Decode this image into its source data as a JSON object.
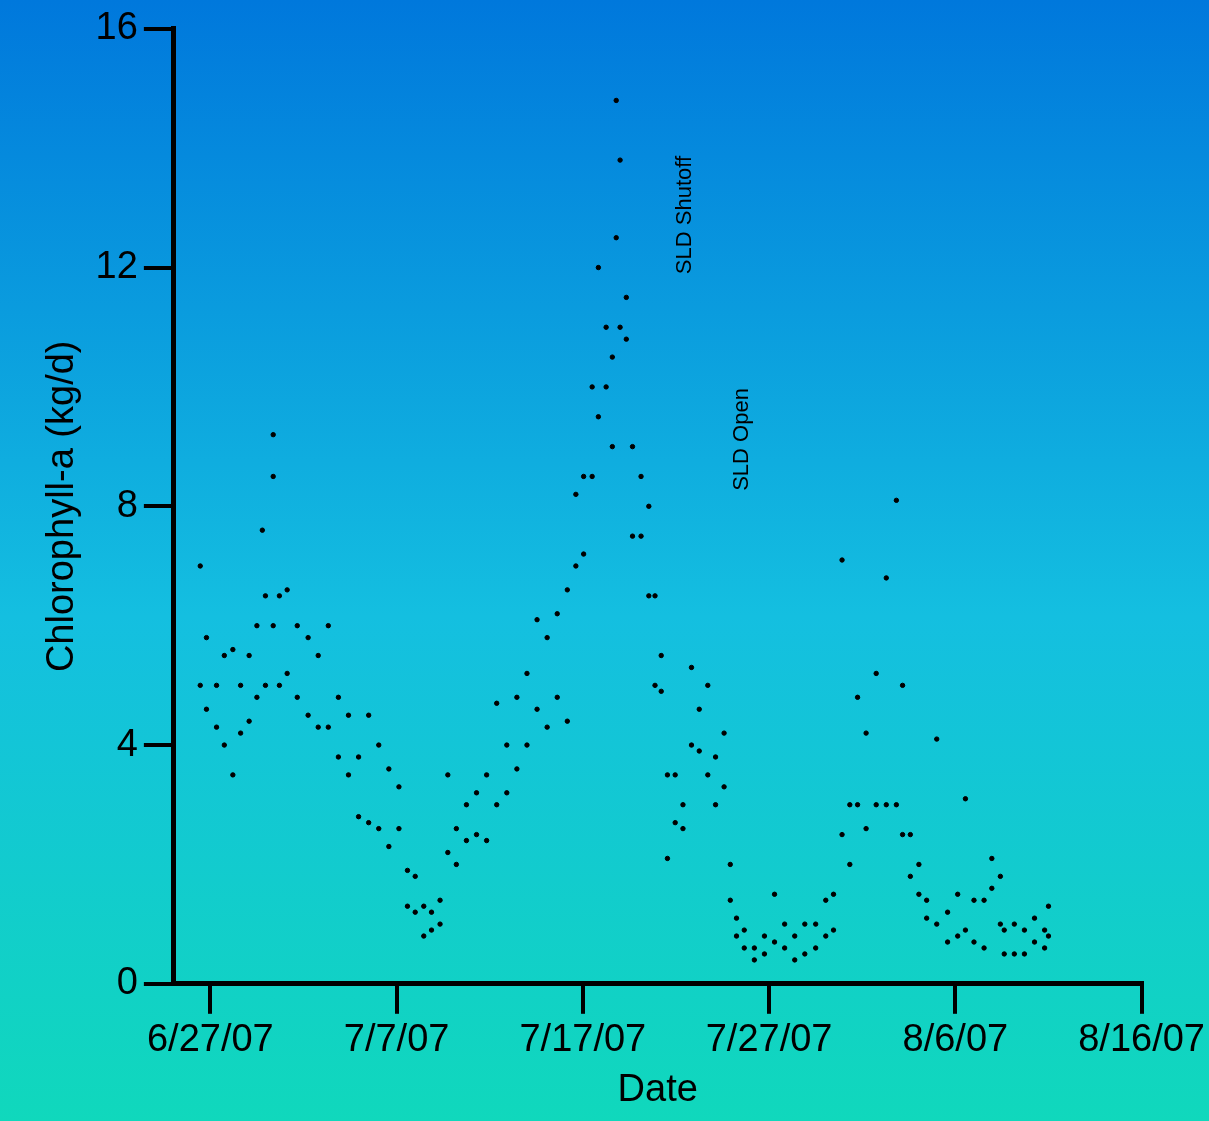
{
  "chart_data": {
    "type": "scatter",
    "xlabel": "Date",
    "ylabel": "Chlorophyll-a (kg/d)",
    "xlim": [
      "--06-25T01:00",
      "--08-16"
    ],
    "xticks": [
      {
        "value": "--06-27",
        "label": "6/27/07"
      },
      {
        "value": "--07-07",
        "label": "7/7/07"
      },
      {
        "value": "--07-17",
        "label": "7/17/07"
      },
      {
        "value": "--07-27",
        "label": "7/27/07"
      },
      {
        "value": "--08-06",
        "label": "8/6/07"
      },
      {
        "value": "--08-16",
        "label": "8/16/07"
      }
    ],
    "ylim": [
      0,
      16
    ],
    "yticks": [
      0,
      4,
      8,
      12,
      16
    ],
    "grid": false,
    "legend": false,
    "marker": "circle",
    "annotations": [
      "SLD Shutoff",
      "SLD Open"
    ],
    "series": [
      {
        "color": "#000000",
        "x": [
          "--06-26T11:00",
          "--06-26T11:00",
          "--06-26T19:00",
          "--06-26T19:00",
          "--06-27T08:00",
          "--06-27T08:00",
          "--06-27T18:00",
          "--06-27T18:00",
          "--06-28T05:00",
          "--06-28T05:00",
          "--06-28T15:00",
          "--06-28T15:00",
          "--06-29T02:00",
          "--06-29T02:00",
          "--06-29T12:00",
          "--06-29T12:00",
          "--06-29T19:00",
          "--06-29T23:00",
          "--06-29T23:00",
          "--06-30T09:00",
          "--06-30T09:00",
          "--06-30T09:00",
          "--06-30T17:00",
          "--06-30T17:00",
          "--07-01T03:00",
          "--07-01T03:00",
          "--07-01T16:00",
          "--07-01T16:00",
          "--07-02T06:00",
          "--07-02T06:00",
          "--07-02T19:00",
          "--07-02T19:00",
          "--07-03T08:00",
          "--07-03T08:00",
          "--07-03T21:00",
          "--07-03T21:00",
          "--07-04T10:00",
          "--07-04T10:00",
          "--07-04T23:00",
          "--07-04T23:00",
          "--07-05T12:00",
          "--07-05T12:00",
          "--07-06T01:00",
          "--07-06T01:00",
          "--07-06T14:00",
          "--07-06T14:00",
          "--07-07T03:00",
          "--07-07T03:00",
          "--07-07T14:00",
          "--07-07T14:00",
          "--07-08T00:00",
          "--07-08T00:00",
          "--07-08T11:00",
          "--07-08T11:00",
          "--07-08T21:00",
          "--07-08T21:00",
          "--07-09T08:00",
          "--07-09T08:00",
          "--07-09T18:00",
          "--07-09T18:00",
          "--07-10T05:00",
          "--07-10T05:00",
          "--07-10T18:00",
          "--07-10T18:00",
          "--07-11T07:00",
          "--07-11T07:00",
          "--07-11T20:00",
          "--07-11T20:00",
          "--07-12T09:00",
          "--07-12T09:00",
          "--07-12T22:00",
          "--07-12T22:00",
          "--07-13T11:00",
          "--07-13T11:00",
          "--07-14T00:00",
          "--07-14T00:00",
          "--07-14T13:00",
          "--07-14T13:00",
          "--07-15T02:00",
          "--07-15T02:00",
          "--07-15T15:00",
          "--07-15T15:00",
          "--07-16T04:00",
          "--07-16T04:00",
          "--07-16T15:00",
          "--07-16T15:00",
          "--07-17T01:00",
          "--07-17T01:00",
          "--07-17T12:00",
          "--07-17T12:00",
          "--07-17T20:00",
          "--07-17T20:00",
          "--07-18T06:00",
          "--07-18T06:00",
          "--07-18T14:00",
          "--07-18T14:00",
          "--07-18T19:00",
          "--07-18T19:00",
          "--07-19T00:00",
          "--07-19T00:00",
          "--07-19T08:00",
          "--07-19T08:00",
          "--07-19T16:00",
          "--07-19T16:00",
          "--07-20T03:00",
          "--07-20T03:00",
          "--07-20T13:00",
          "--07-20T13:00",
          "--07-20T21:00",
          "--07-20T21:00",
          "--07-21T05:00",
          "--07-21T05:00",
          "--07-21T13:00",
          "--07-21T13:00",
          "--07-21T23:00",
          "--07-21T23:00",
          "--07-22T09:00",
          "--07-22T09:00",
          "--07-22T20:00",
          "--07-22T20:00",
          "--07-23T06:00",
          "--07-23T06:00",
          "--07-23T17:00",
          "--07-23T17:00",
          "--07-24T03:00",
          "--07-24T03:00",
          "--07-24T14:00",
          "--07-24T14:00",
          "--07-24T22:00",
          "--07-24T22:00",
          "--07-25T06:00",
          "--07-25T06:00",
          "--07-25T16:00",
          "--07-25T16:00",
          "--07-26T05:00",
          "--07-26T05:00",
          "--07-26T18:00",
          "--07-26T18:00",
          "--07-27T07:00",
          "--07-27T07:00",
          "--07-27T20:00",
          "--07-27T20:00",
          "--07-28T09:00",
          "--07-28T09:00",
          "--07-28T22:00",
          "--07-28T22:00",
          "--07-29T12:00",
          "--07-29T12:00",
          "--07-30T01:00",
          "--07-30T01:00",
          "--07-30T11:00",
          "--07-30T11:00",
          "--07-30T22:00",
          "--07-30T22:00",
          "--07-31T08:00",
          "--07-31T08:00",
          "--07-31T18:00",
          "--07-31T18:00",
          "--08-01T05:00",
          "--08-01T05:00",
          "--08-01T18:00",
          "--08-01T18:00",
          "--08-02T07:00",
          "--08-02T07:00",
          "--08-02T20:00",
          "--08-02T20:00",
          "--08-03T04:00",
          "--08-03T04:00",
          "--08-03T14:00",
          "--08-03T14:00",
          "--08-04T01:00",
          "--08-04T01:00",
          "--08-04T11:00",
          "--08-04T11:00",
          "--08-05T00:00",
          "--08-05T00:00",
          "--08-05T14:00",
          "--08-05T14:00",
          "--08-06T03:00",
          "--08-06T03:00",
          "--08-06T13:00",
          "--08-06T13:00",
          "--08-07T00:00",
          "--08-07T00:00",
          "--08-07T13:00",
          "--08-07T13:00",
          "--08-07T23:00",
          "--08-07T23:00",
          "--08-08T10:00",
          "--08-08T10:00",
          "--08-08T15:00",
          "--08-08T15:00",
          "--08-09T04:00",
          "--08-09T04:00",
          "--08-09T17:00",
          "--08-09T17:00",
          "--08-10T06:00",
          "--08-10T06:00",
          "--08-10T19:00",
          "--08-10T19:00",
          "--08-11T00:00",
          "--08-11T00:00"
        ],
        "values": [
          7.0,
          5.0,
          5.8,
          4.6,
          5.0,
          4.3,
          5.5,
          4.0,
          5.6,
          3.5,
          5.0,
          4.2,
          5.5,
          4.4,
          6.0,
          4.8,
          7.6,
          6.5,
          5.0,
          9.2,
          8.5,
          6.0,
          6.5,
          5.0,
          6.6,
          5.2,
          6.0,
          4.8,
          5.8,
          4.5,
          5.5,
          4.3,
          6.0,
          4.3,
          4.8,
          3.8,
          4.5,
          3.5,
          3.8,
          2.8,
          4.5,
          2.7,
          4.0,
          2.6,
          3.6,
          2.3,
          3.3,
          2.6,
          1.9,
          1.3,
          1.8,
          1.2,
          1.3,
          0.8,
          1.2,
          0.9,
          1.4,
          1.0,
          3.5,
          2.2,
          2.6,
          2.0,
          3.0,
          2.4,
          3.2,
          2.5,
          3.5,
          2.4,
          4.7,
          3.0,
          4.0,
          3.2,
          4.8,
          3.6,
          5.2,
          4.0,
          6.1,
          4.6,
          5.8,
          4.3,
          6.2,
          4.8,
          6.6,
          4.4,
          8.2,
          7.0,
          8.5,
          7.2,
          10.0,
          8.5,
          12.0,
          9.5,
          11.0,
          10.0,
          10.5,
          9.0,
          14.8,
          12.5,
          13.8,
          11.0,
          11.5,
          10.8,
          9.0,
          7.5,
          8.5,
          7.5,
          8.0,
          6.5,
          6.5,
          5.0,
          5.5,
          4.9,
          3.5,
          2.1,
          3.5,
          2.7,
          3.0,
          2.6,
          5.3,
          4.0,
          4.6,
          3.9,
          5.0,
          3.5,
          3.8,
          3.0,
          4.2,
          3.3,
          2.0,
          1.4,
          1.1,
          0.8,
          0.9,
          0.6,
          0.6,
          0.4,
          0.8,
          0.5,
          1.5,
          0.7,
          1.0,
          0.6,
          0.8,
          0.4,
          1.0,
          0.5,
          1.0,
          0.6,
          1.4,
          0.8,
          1.5,
          0.9,
          7.1,
          2.5,
          3.0,
          2.0,
          4.8,
          3.0,
          4.2,
          2.6,
          5.2,
          3.0,
          6.8,
          3.0,
          8.1,
          3.0,
          5.0,
          2.5,
          2.5,
          1.8,
          2.0,
          1.5,
          1.4,
          1.1,
          4.1,
          1.0,
          1.2,
          0.7,
          1.5,
          0.8,
          3.1,
          0.9,
          1.4,
          0.7,
          1.4,
          0.6,
          2.1,
          1.6,
          1.8,
          1.0,
          0.9,
          0.5,
          1.0,
          0.5,
          0.9,
          0.5,
          1.1,
          0.7,
          0.9,
          0.6,
          1.3,
          0.8
        ]
      }
    ]
  }
}
